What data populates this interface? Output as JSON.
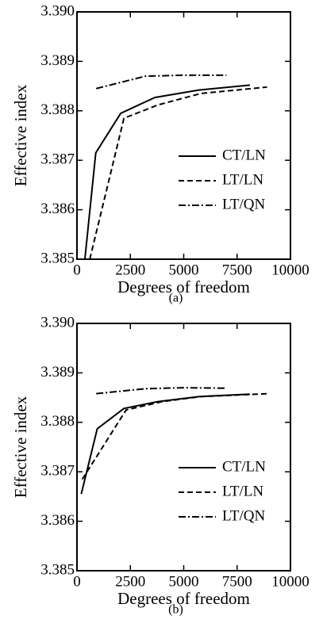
{
  "chart_data": [
    {
      "type": "line",
      "xlabel": "Degrees of freedom",
      "ylabel": "Effective index",
      "caption": "(a)",
      "xlim": [
        0,
        10000
      ],
      "xticks": [
        0,
        2500,
        5000,
        7500,
        10000
      ],
      "ylim": [
        3.385,
        3.39
      ],
      "yticks": [
        3.385,
        3.386,
        3.387,
        3.388,
        3.389,
        {
          "value": 3.39,
          "label": "3.390"
        }
      ],
      "legend": "lower right",
      "series": [
        {
          "name": "CT/LN",
          "color": "#000000",
          "dash": "solid",
          "x": [
            370,
            880,
            2050,
            3650,
            5700,
            8100
          ],
          "values": [
            3.385,
            3.38715,
            3.38795,
            3.38827,
            3.38842,
            3.38852
          ]
        },
        {
          "name": "LT/LN",
          "color": "#000000",
          "dash": "dashed",
          "x": [
            600,
            2200,
            3800,
            5800,
            8900
          ],
          "values": [
            3.385,
            3.38785,
            3.38812,
            3.38835,
            3.38848
          ]
        },
        {
          "name": "LT/QN",
          "color": "#000000",
          "dash": "dashdot",
          "x": [
            900,
            3200,
            5000,
            7000
          ],
          "values": [
            3.38845,
            3.3887,
            3.38872,
            3.38872
          ]
        }
      ]
    },
    {
      "type": "line",
      "xlabel": "Degrees of freedom",
      "ylabel": "Effective index",
      "caption": "(b)",
      "xlim": [
        0,
        10000
      ],
      "xticks": [
        0,
        2500,
        5000,
        7500,
        10000
      ],
      "ylim": [
        3.385,
        3.39
      ],
      "yticks": [
        3.385,
        3.386,
        3.387,
        3.388,
        3.389,
        {
          "value": 3.39,
          "label": "3.390"
        }
      ],
      "legend": "lower right",
      "series": [
        {
          "name": "CT/LN",
          "color": "#000000",
          "dash": "solid",
          "x": [
            200,
            950,
            2200,
            3800,
            5700,
            8100
          ],
          "values": [
            3.38655,
            3.38787,
            3.38828,
            3.38842,
            3.38852,
            3.38857
          ]
        },
        {
          "name": "LT/LN",
          "color": "#000000",
          "dash": "dashed",
          "x": [
            250,
            2300,
            4000,
            5800,
            9000
          ],
          "values": [
            3.38685,
            3.38825,
            3.38842,
            3.38852,
            3.38858
          ]
        },
        {
          "name": "LT/QN",
          "color": "#000000",
          "dash": "dashdot",
          "x": [
            900,
            3200,
            5000,
            7000
          ],
          "values": [
            3.38858,
            3.38868,
            3.3887,
            3.38869
          ]
        }
      ]
    }
  ]
}
